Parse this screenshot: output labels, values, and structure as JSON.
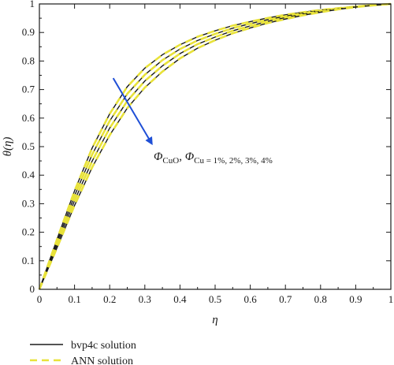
{
  "colors": {
    "bvp": "#1a1a1a",
    "ann": "#e8e23a",
    "arrow": "#1f4fd6",
    "axis": "#1a1a1a"
  },
  "chart_data": {
    "type": "line",
    "xlabel": "η",
    "ylabel": "θ(η)",
    "xlim": [
      0,
      1
    ],
    "ylim": [
      0,
      1
    ],
    "x_ticks": [
      0,
      0.1,
      0.2,
      0.3,
      0.4,
      0.5,
      0.6,
      0.7,
      0.8,
      0.9,
      1
    ],
    "x_tick_labels": [
      "0",
      "0.1",
      "0.2",
      "0.3",
      "0.4",
      "0.5",
      "0.6",
      "0.7",
      "0.8",
      "0.9",
      "1"
    ],
    "y_ticks": [
      0,
      0.1,
      0.2,
      0.3,
      0.4,
      0.5,
      0.6,
      0.7,
      0.8,
      0.9,
      1
    ],
    "y_tick_labels": [
      "0",
      "0.1",
      "0.2",
      "0.3",
      "0.4",
      "0.5",
      "0.6",
      "0.7",
      "0.8",
      "0.9",
      "1"
    ],
    "grid": false,
    "legend_position": "bottom-left",
    "legend": [
      "bvp4c solution",
      "ANN solution"
    ],
    "x": [
      0,
      0.05,
      0.1,
      0.15,
      0.2,
      0.25,
      0.3,
      0.35,
      0.4,
      0.45,
      0.5,
      0.55,
      0.6,
      0.65,
      0.7,
      0.75,
      0.8,
      0.85,
      0.9,
      0.95,
      1
    ],
    "series": [
      {
        "values": [
          0,
          0.175,
          0.345,
          0.495,
          0.615,
          0.71,
          0.775,
          0.822,
          0.857,
          0.885,
          0.906,
          0.924,
          0.938,
          0.951,
          0.962,
          0.971,
          0.979,
          0.985,
          0.991,
          0.996,
          1
        ]
      },
      {
        "values": [
          0,
          0.165,
          0.328,
          0.472,
          0.59,
          0.685,
          0.752,
          0.803,
          0.842,
          0.872,
          0.895,
          0.915,
          0.931,
          0.945,
          0.957,
          0.968,
          0.977,
          0.984,
          0.99,
          0.996,
          1
        ]
      },
      {
        "values": [
          0,
          0.155,
          0.311,
          0.449,
          0.565,
          0.66,
          0.73,
          0.783,
          0.826,
          0.859,
          0.884,
          0.906,
          0.923,
          0.939,
          0.952,
          0.964,
          0.974,
          0.983,
          0.99,
          0.996,
          1
        ]
      },
      {
        "values": [
          0,
          0.145,
          0.294,
          0.427,
          0.54,
          0.635,
          0.707,
          0.763,
          0.809,
          0.845,
          0.873,
          0.897,
          0.916,
          0.933,
          0.947,
          0.96,
          0.971,
          0.981,
          0.989,
          0.995,
          1
        ]
      }
    ],
    "annotation": {
      "text_prefix": "Φ",
      "sub1": "CuO",
      "comma": ", ",
      "text_prefix2": "Φ",
      "sub2": "Cu",
      "values": " = 1%, 2%, 3%, 4%",
      "arrow_from": [
        0.21,
        0.74
      ],
      "arrow_to": [
        0.32,
        0.51
      ]
    }
  }
}
